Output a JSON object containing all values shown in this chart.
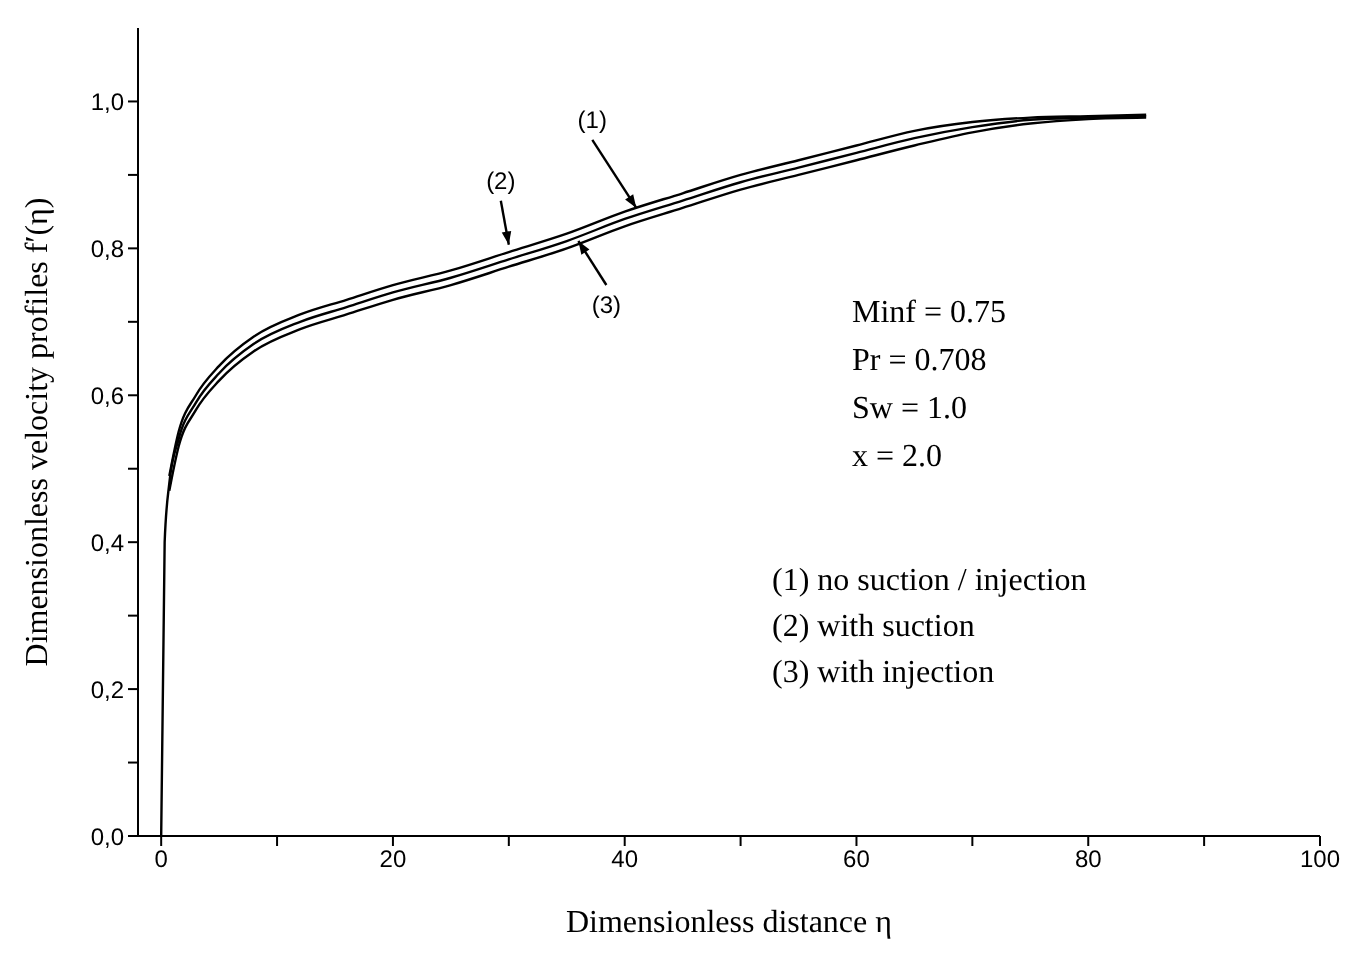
{
  "chart_data": {
    "type": "line",
    "xlabel": "Dimensionless distance η",
    "ylabel": "Dimensionless velocity profiles f′(η)",
    "x": [
      0,
      0.3,
      0.7,
      1.5,
      3,
      5,
      8,
      12,
      16,
      20,
      25,
      30,
      35,
      40,
      45,
      50,
      55,
      60,
      65,
      70,
      75,
      80,
      85
    ],
    "series": [
      {
        "color": "#000000",
        "values": [
          0,
          0.4,
          0.48,
          0.54,
          0.59,
          0.63,
          0.67,
          0.7,
          0.72,
          0.74,
          0.76,
          0.785,
          0.81,
          0.84,
          0.865,
          0.89,
          0.91,
          0.93,
          0.95,
          0.965,
          0.975,
          0.978,
          0.98
        ]
      },
      {
        "color": "#000000",
        "values": [
          null,
          null,
          0.49,
          0.55,
          0.6,
          0.64,
          0.68,
          0.71,
          0.73,
          0.75,
          0.77,
          0.795,
          0.82,
          0.85,
          0.875,
          0.9,
          0.92,
          0.94,
          0.96,
          0.972,
          0.978,
          0.98,
          0.982
        ]
      },
      {
        "color": "#000000",
        "values": [
          null,
          null,
          0.47,
          0.53,
          0.58,
          0.62,
          0.66,
          0.69,
          0.71,
          0.73,
          0.75,
          0.775,
          0.8,
          0.83,
          0.855,
          0.88,
          0.9,
          0.92,
          0.94,
          0.958,
          0.97,
          0.976,
          0.978
        ]
      }
    ],
    "xlim": [
      -2,
      100
    ],
    "xticks": [
      0,
      {
        "value": 10,
        "label": null
      },
      20,
      {
        "value": 30,
        "label": null
      },
      40,
      {
        "value": 50,
        "label": null
      },
      60,
      {
        "value": 70,
        "label": null
      },
      80,
      {
        "value": 90,
        "label": null
      },
      100
    ],
    "ylim": [
      0,
      1.1
    ],
    "yticks": [
      {
        "value": 0,
        "label": "0,0"
      },
      {
        "value": 0.1,
        "label": null
      },
      {
        "value": 0.2,
        "label": "0,2"
      },
      {
        "value": 0.3,
        "label": null
      },
      {
        "value": 0.4,
        "label": "0,4"
      },
      {
        "value": 0.5,
        "label": null
      },
      {
        "value": 0.6,
        "label": "0,6"
      },
      {
        "value": 0.7,
        "label": null
      },
      {
        "value": 0.8,
        "label": "0,8"
      },
      {
        "value": 0.9,
        "label": null
      },
      {
        "value": 1,
        "label": "1,0"
      }
    ],
    "annotations": [
      {
        "text": "(1)",
        "x": 41,
        "y": 0.855
      },
      {
        "text": "(2)",
        "x": 30,
        "y": 0.805
      },
      {
        "text": "(3)",
        "x": 36,
        "y": 0.81
      },
      "Minf = 0.75",
      "Pr = 0.708",
      "Sw = 1.0",
      "x = 2.0",
      "(1) no suction / injection",
      "(2) with suction",
      "(3) with injection"
    ],
    "grid": false,
    "legend": false,
    "marker": "none",
    "line_style": "solid"
  }
}
